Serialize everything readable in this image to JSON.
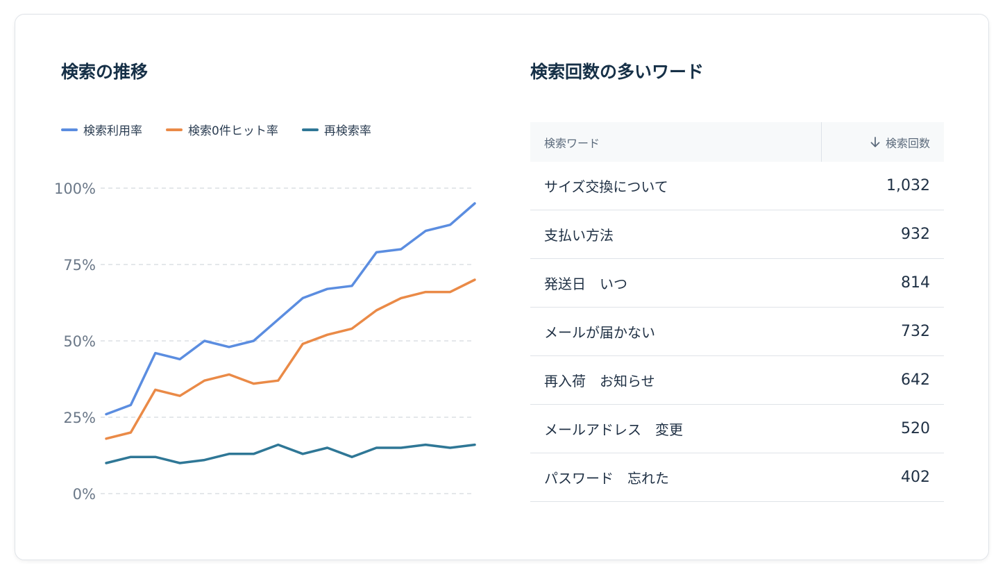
{
  "chart_section": {
    "title": "検索の推移"
  },
  "table_section": {
    "title": "検索回数の多いワード",
    "header_word": "検索ワード",
    "header_count": "検索回数",
    "rows": [
      {
        "word": "サイズ交換について",
        "count": "1,032"
      },
      {
        "word": "支払い方法",
        "count": "932"
      },
      {
        "word": "発送日　いつ",
        "count": "814"
      },
      {
        "word": "メールが届かない",
        "count": "732"
      },
      {
        "word": "再入荷　お知らせ",
        "count": "642"
      },
      {
        "word": "メールアドレス　変更",
        "count": "520"
      },
      {
        "word": "パスワード　忘れた",
        "count": "402"
      }
    ]
  },
  "colors": {
    "series_1": "#5b8de0",
    "series_2": "#ea8a47",
    "series_3": "#2f7796",
    "grid": "#dcdfe4"
  },
  "icons": {
    "sort": "arrow-down-icon"
  },
  "chart_data": {
    "type": "line",
    "x": [
      1,
      2,
      3,
      4,
      5,
      6,
      7,
      8,
      9,
      10,
      11,
      12,
      13,
      14,
      15,
      16
    ],
    "series": [
      {
        "name": "検索利用率",
        "values": [
          26,
          29,
          46,
          44,
          50,
          48,
          50,
          57,
          64,
          67,
          68,
          79,
          80,
          86,
          88,
          95
        ]
      },
      {
        "name": "検索0件ヒット率",
        "values": [
          18,
          20,
          34,
          32,
          37,
          39,
          36,
          37,
          49,
          52,
          54,
          60,
          64,
          66,
          66,
          70
        ]
      },
      {
        "name": "再検索率",
        "values": [
          10,
          12,
          12,
          10,
          11,
          13,
          13,
          16,
          13,
          15,
          12,
          15,
          15,
          16,
          15,
          16
        ]
      }
    ],
    "ylim": [
      0,
      100
    ],
    "yticks": [
      0,
      25,
      50,
      75,
      100
    ],
    "ytick_labels": [
      "0%",
      "25%",
      "50%",
      "75%",
      "100%"
    ],
    "grid": true,
    "legend_position": "top-left"
  }
}
